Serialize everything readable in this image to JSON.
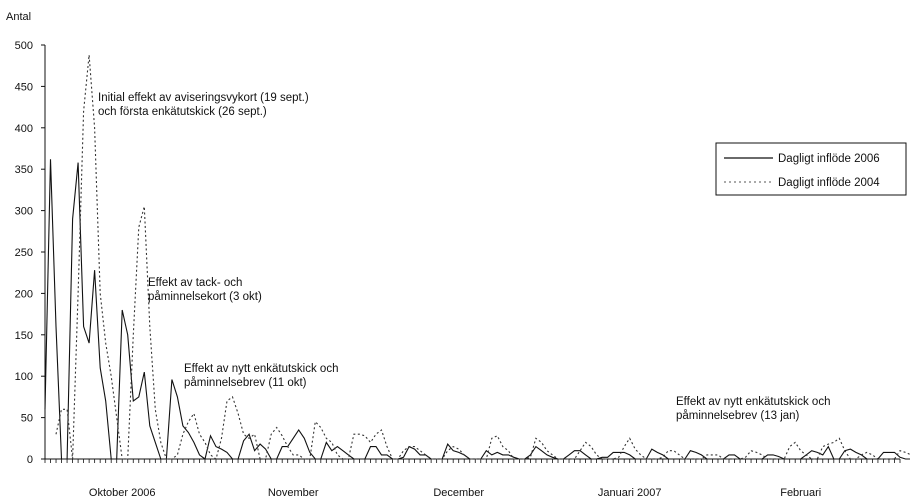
{
  "chart_data": {
    "type": "line",
    "ylabel": "Antal",
    "ylim": [
      0,
      500
    ],
    "yticks": [
      0,
      50,
      100,
      150,
      200,
      250,
      300,
      350,
      400,
      450,
      500
    ],
    "month_labels": [
      {
        "label": "Oktober 2006",
        "day": 14
      },
      {
        "label": "November",
        "day": 45
      },
      {
        "label": "December",
        "day": 75
      },
      {
        "label": "Januari 2007",
        "day": 106
      },
      {
        "label": "Februari",
        "day": 137
      }
    ],
    "x_range": [
      0,
      155
    ],
    "legend_position": "right",
    "series": [
      {
        "name": "Dagligt inflöde 2006",
        "style": "solid",
        "color": "#111111",
        "values": [
          60,
          362,
          160,
          0,
          0,
          290,
          358,
          160,
          140,
          228,
          110,
          70,
          0,
          0,
          180,
          150,
          70,
          75,
          105,
          40,
          20,
          0,
          0,
          96,
          75,
          40,
          32,
          20,
          5,
          0,
          28,
          15,
          12,
          8,
          0,
          0,
          22,
          30,
          10,
          18,
          12,
          0,
          0,
          15,
          15,
          25,
          35,
          25,
          8,
          0,
          0,
          20,
          10,
          15,
          10,
          5,
          0,
          0,
          0,
          15,
          15,
          5,
          5,
          0,
          0,
          2,
          15,
          12,
          5,
          5,
          0,
          0,
          0,
          18,
          10,
          8,
          5,
          0,
          0,
          0,
          10,
          5,
          8,
          5,
          5,
          2,
          0,
          0,
          5,
          15,
          10,
          5,
          2,
          0,
          0,
          5,
          10,
          10,
          5,
          0,
          0,
          2,
          2,
          8,
          8,
          8,
          5,
          0,
          0,
          0,
          12,
          8,
          5,
          0,
          0,
          0,
          0,
          10,
          8,
          5,
          0,
          0,
          0,
          0,
          5,
          5,
          0,
          0,
          0,
          0,
          0,
          5,
          5,
          3,
          0,
          0,
          0,
          0,
          5,
          10,
          8,
          5,
          15,
          0,
          0,
          10,
          12,
          8,
          5,
          0,
          0,
          0,
          8,
          8,
          8,
          2,
          0,
          0,
          5,
          5,
          5,
          3,
          0,
          0,
          5,
          8,
          5,
          2,
          0,
          0,
          0
        ],
        "x_start": 0
      },
      {
        "name": "Dagligt inflöde 2004",
        "style": "dotted",
        "color": "#111111",
        "values": [
          30,
          60,
          60,
          0,
          200,
          420,
          488,
          400,
          200,
          140,
          100,
          50,
          0,
          0,
          150,
          280,
          305,
          160,
          60,
          20,
          0,
          0,
          5,
          30,
          45,
          55,
          30,
          20,
          5,
          0,
          25,
          70,
          75,
          55,
          30,
          25,
          30,
          0,
          0,
          30,
          38,
          28,
          15,
          5,
          5,
          0,
          0,
          45,
          38,
          25,
          20,
          5,
          0,
          0,
          30,
          30,
          28,
          20,
          30,
          35,
          15,
          0,
          0,
          10,
          15,
          15,
          10,
          5,
          0,
          0,
          0,
          10,
          15,
          12,
          5,
          0,
          0,
          0,
          0,
          25,
          28,
          15,
          10,
          0,
          0,
          0,
          2,
          25,
          20,
          10,
          5,
          0,
          0,
          0,
          0,
          10,
          20,
          15,
          5,
          0,
          0,
          0,
          2,
          15,
          25,
          12,
          5,
          0,
          0,
          0,
          2,
          10,
          10,
          5,
          0,
          0,
          0,
          0,
          5,
          5,
          5,
          0,
          0,
          0,
          0,
          2,
          10,
          8,
          5,
          0,
          0,
          0,
          0,
          15,
          20,
          10,
          5,
          0,
          0,
          15,
          18,
          20,
          25,
          10,
          0,
          0,
          5,
          8,
          5,
          0,
          0,
          0,
          0,
          10,
          8,
          5,
          0,
          0,
          0
        ],
        "x_start": 2
      }
    ]
  },
  "annotations": [
    {
      "line1": "Initial effekt av aviseringsvykort (19 sept.)",
      "line2": "och första enkätutskick (26 sept.)"
    },
    {
      "line1": "Effekt av tack- och",
      "line2": "påminnelsekort (3 okt)"
    },
    {
      "line1": "Effekt av nytt enkätutskick och",
      "line2": "påminnelsebrev  (11 okt)"
    },
    {
      "line1": "Effekt av nytt enkätutskick och",
      "line2": "påminnelsebrev  (13 jan)"
    }
  ]
}
